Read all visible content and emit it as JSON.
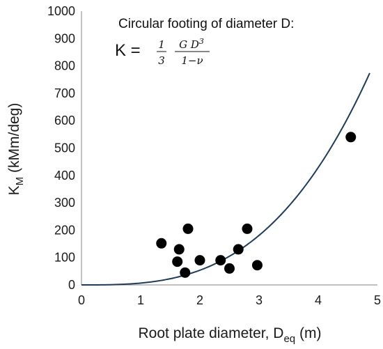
{
  "chart_data": {
    "type": "scatter",
    "xlabel": "Root plate diameter, D",
    "xlabel_sub": "eq",
    "xlabel_unit": " (m)",
    "ylabel": "K",
    "ylabel_sub": "M",
    "ylabel_unit": " (kMm/deg)",
    "xlim": [
      0,
      5
    ],
    "ylim": [
      0,
      1000
    ],
    "x_ticks": [
      "0",
      "1",
      "2",
      "3",
      "4",
      "5"
    ],
    "y_ticks": [
      "0",
      "100",
      "200",
      "300",
      "400",
      "500",
      "600",
      "700",
      "800",
      "900",
      "1000"
    ],
    "grid": false,
    "annotation": {
      "line1": "Circular footing of diameter D:",
      "formula_lhs": "K = ",
      "frac1_num": "1",
      "frac1_den": "3",
      "frac2_num_a": "G D",
      "frac2_num_exp": "3",
      "frac2_den": "1−ν"
    },
    "series": [
      {
        "type": "scatter",
        "color": "#000000",
        "points": [
          [
            1.35,
            152
          ],
          [
            1.65,
            130
          ],
          [
            1.8,
            205
          ],
          [
            1.62,
            85
          ],
          [
            1.75,
            45
          ],
          [
            2.0,
            90
          ],
          [
            2.35,
            90
          ],
          [
            2.5,
            60
          ],
          [
            2.65,
            130
          ],
          [
            2.8,
            205
          ],
          [
            2.97,
            72
          ],
          [
            4.55,
            540
          ]
        ]
      },
      {
        "type": "line",
        "color": "#1f3b5a",
        "formula": "K = c · D^3",
        "coef": 6.7,
        "x_range": [
          0,
          4.87
        ]
      }
    ]
  }
}
